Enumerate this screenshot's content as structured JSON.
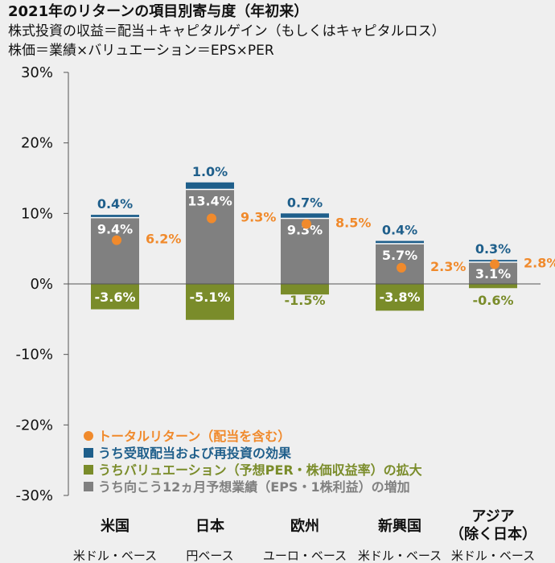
{
  "title": "2021年のリターンの項目別寄与度（年初来）",
  "subtitle1": "株式投資の収益＝配当＋キャピタルゲイン（もしくはキャピタルロス）",
  "subtitle2": "株価＝業績×バリュエーション＝EPS×PER",
  "colors": {
    "earnings": "#808080",
    "dividend": "#1f5f8b",
    "valuation": "#7a8c2a",
    "total": "#f08a2c"
  },
  "chart_data": {
    "type": "bar",
    "ylim": [
      -30,
      30
    ],
    "yticks": [
      30,
      20,
      10,
      0,
      -10,
      -20,
      -30
    ],
    "ytick_labels": [
      "30%",
      "20%",
      "10%",
      "0%",
      "-10%",
      "-20%",
      "-30%"
    ],
    "categories": [
      {
        "name": "米国",
        "currency": "米ドル・ベース"
      },
      {
        "name": "日本",
        "currency": "円ベース"
      },
      {
        "name": "欧州",
        "currency": "ユーロ・ベース"
      },
      {
        "name": "新興国",
        "currency": "米ドル・ベース"
      },
      {
        "name": "アジア",
        "name2": "（除く日本）",
        "currency": "米ドル・ベース"
      }
    ],
    "series": [
      {
        "name": "うち向こう12ヵ月予想業績（EPS・1株利益）の増加",
        "key": "earnings",
        "values": [
          9.4,
          13.4,
          9.3,
          5.7,
          3.1
        ],
        "labels": [
          "9.4%",
          "13.4%",
          "9.3%",
          "5.7%",
          "3.1%"
        ]
      },
      {
        "name": "うち受取配当および再投資の効果",
        "key": "dividend",
        "values": [
          0.4,
          1.0,
          0.7,
          0.4,
          0.3
        ],
        "labels": [
          "0.4%",
          "1.0%",
          "0.7%",
          "0.4%",
          "0.3%"
        ]
      },
      {
        "name": "うちバリュエーション（予想PER・株価収益率）の拡大",
        "key": "valuation",
        "values": [
          -3.6,
          -5.1,
          -1.5,
          -3.8,
          -0.6
        ],
        "labels": [
          "-3.6%",
          "-5.1%",
          "-1.5%",
          "-3.8%",
          "-0.6%"
        ]
      },
      {
        "name": "トータルリターン（配当を含む）",
        "key": "total",
        "values": [
          6.2,
          9.3,
          8.5,
          2.3,
          2.8
        ],
        "labels": [
          "6.2%",
          "9.3%",
          "8.5%",
          "2.3%",
          "2.8%"
        ]
      }
    ],
    "legend": [
      {
        "key": "total",
        "label": "トータルリターン（配当を含む）"
      },
      {
        "key": "dividend",
        "label": "うち受取配当および再投資の効果"
      },
      {
        "key": "valuation",
        "label": "うちバリュエーション（予想PER・株価収益率）の拡大"
      },
      {
        "key": "earnings",
        "label": "うち向こう12ヵ月予想業績（EPS・1株利益）の増加"
      }
    ]
  }
}
